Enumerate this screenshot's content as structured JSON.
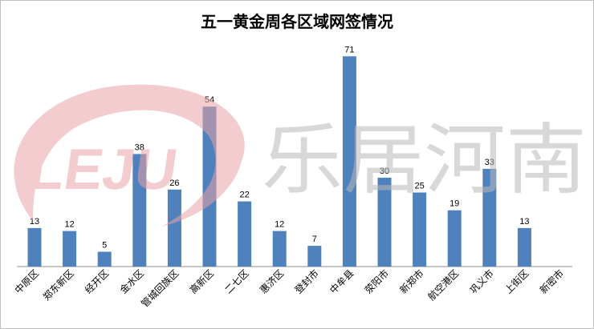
{
  "chart_data": {
    "type": "bar",
    "title": "五一黄金周各区域网签情况",
    "categories": [
      "中原区",
      "郑东新区",
      "经开区",
      "金水区",
      "管城回族区",
      "高新区",
      "二七区",
      "惠济区",
      "登封市",
      "中牟县",
      "荥阳市",
      "新郑市",
      "航空港区",
      "巩义市",
      "上街区",
      "新密市"
    ],
    "values": [
      13,
      12,
      5,
      38,
      26,
      54,
      22,
      12,
      7,
      71,
      30,
      25,
      19,
      33,
      13,
      null
    ],
    "data_labels": [
      "13",
      "12",
      "5",
      "38",
      "26",
      "54",
      "22",
      "12",
      "7",
      "71",
      "30",
      "25",
      "19",
      "33",
      "13",
      ""
    ],
    "ylim": [
      0,
      80
    ],
    "xlabel": "",
    "ylabel": "",
    "grid": false,
    "legend": "none",
    "bar_color": "#4f81bd"
  },
  "watermark": {
    "logo_text": "LEJU",
    "brand_text": "乐居河南",
    "logo_color": "#e8a3a7",
    "text_color": "#b9b9b9"
  }
}
